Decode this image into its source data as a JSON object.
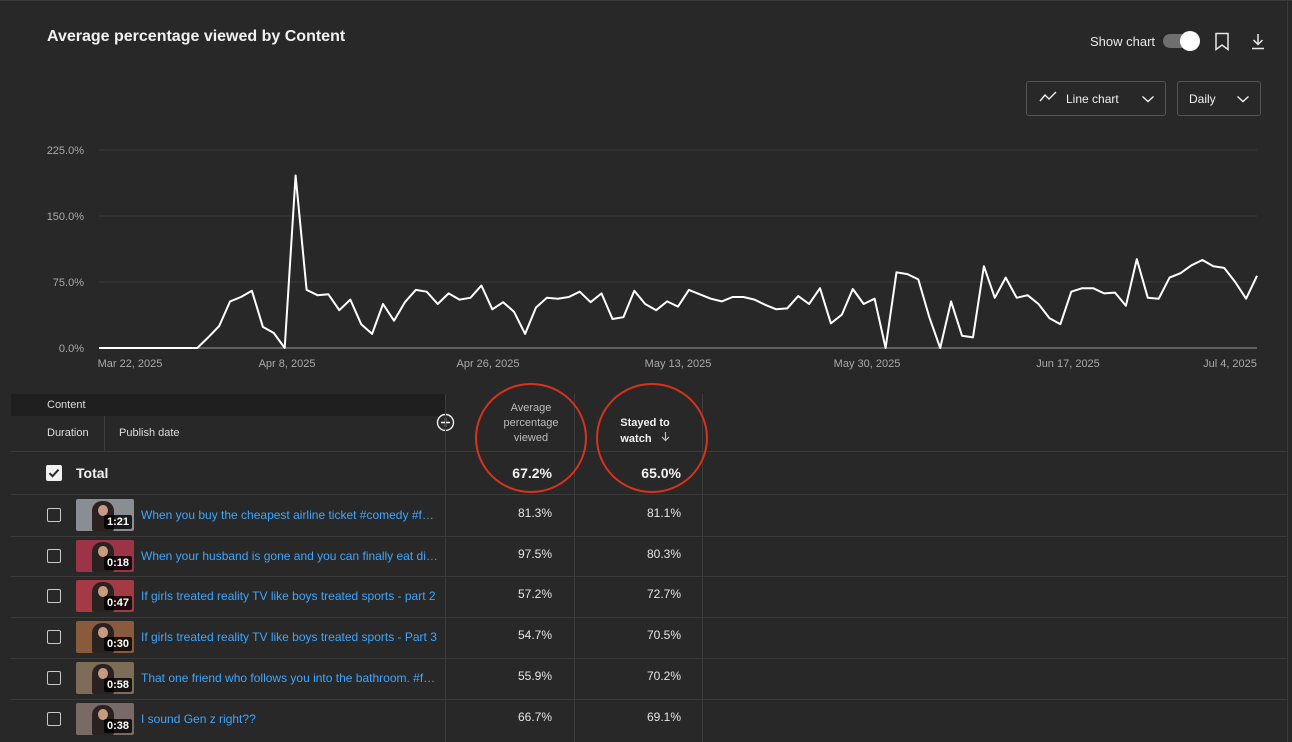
{
  "header": {
    "title": "Average percentage viewed by Content",
    "show_chart_label": "Show chart",
    "show_chart_on": true
  },
  "controls": {
    "chart_type": "Line chart",
    "granularity": "Daily"
  },
  "icons": {
    "bookmark": "bookmark-icon",
    "download": "download-icon",
    "line_chart": "line-chart-icon",
    "chevron": "chevron-down-icon",
    "add_metric": "add-circle-icon",
    "sort": "arrow-down-icon",
    "checkmark": "check-icon"
  },
  "colors": {
    "background": "#282828",
    "line": "#ffffff",
    "link": "#3ea6ff",
    "annotation": "#d8321e"
  },
  "chart_data": {
    "type": "line",
    "ylim": [
      0,
      225
    ],
    "y_ticks": [
      "0.0%",
      "75.0%",
      "150.0%",
      "225.0%"
    ],
    "x_ticks": [
      "Mar 22, 2025",
      "Apr 8, 2025",
      "Apr 26, 2025",
      "May 13, 2025",
      "May 30, 2025",
      "Jun 17, 2025",
      "Jul 4, 2025"
    ],
    "x_start": "Mar 22, 2025",
    "x_end": "Jul 4, 2025",
    "grid": true,
    "series": [
      {
        "values": [
          0,
          0,
          0,
          0,
          0,
          0,
          0,
          0,
          0,
          0,
          12,
          25,
          53,
          58,
          65,
          24,
          17,
          0,
          196,
          66,
          60,
          61,
          43,
          55,
          27,
          16,
          50,
          31,
          52,
          66,
          64,
          50,
          62,
          55,
          57,
          71,
          44,
          52,
          41,
          16,
          46,
          57,
          56,
          58,
          64,
          52,
          62,
          33,
          35,
          65,
          50,
          43,
          53,
          47,
          66,
          61,
          56,
          53,
          58,
          58,
          55,
          49,
          44,
          45,
          59,
          50,
          68,
          28,
          38,
          67,
          50,
          56,
          0,
          86,
          84,
          78,
          35,
          0,
          53,
          14,
          12,
          93,
          57,
          80,
          57,
          60,
          50,
          34,
          27,
          64,
          68,
          68,
          62,
          63,
          48,
          101,
          57,
          56,
          80,
          85,
          94,
          100,
          93,
          91,
          75,
          56,
          82
        ]
      }
    ]
  },
  "table": {
    "col_content": "Content",
    "col_duration": "Duration",
    "col_publish": "Publish date",
    "metric1": [
      "Average",
      "percentage",
      "viewed"
    ],
    "metric2": [
      "Stayed to",
      "watch"
    ],
    "total_label": "Total",
    "total_metric1": "67.2%",
    "total_metric2": "65.0%",
    "rows": [
      {
        "title": "When you buy the cheapest airline ticket #comedy #funny",
        "duration": "1:21",
        "m1": "81.3%",
        "m2": "81.1%",
        "thumb": "#8a8d92"
      },
      {
        "title": "When your husband is gone and you can finally eat dinner",
        "duration": "0:18",
        "m1": "97.5%",
        "m2": "80.3%",
        "thumb": "#9c3347"
      },
      {
        "title": "If girls treated reality TV like boys treated sports - part 2",
        "duration": "0:47",
        "m1": "57.2%",
        "m2": "72.7%",
        "thumb": "#a33a44"
      },
      {
        "title": "If girls treated reality TV like boys treated sports - Part 3",
        "duration": "0:30",
        "m1": "54.7%",
        "m2": "70.5%",
        "thumb": "#8a5a3c"
      },
      {
        "title": "That one friend who follows you into the bathroom. #funny",
        "duration": "0:58",
        "m1": "55.9%",
        "m2": "70.2%",
        "thumb": "#7d6c58"
      },
      {
        "title": "I sound Gen z right??",
        "duration": "0:38",
        "m1": "66.7%",
        "m2": "69.1%",
        "thumb": "#7a6a66"
      }
    ]
  }
}
